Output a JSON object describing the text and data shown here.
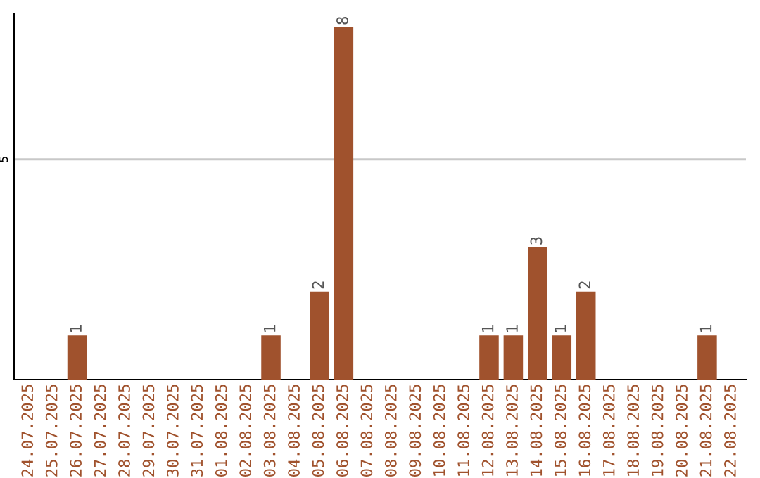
{
  "chart_data": {
    "type": "bar",
    "categories": [
      "24.07.2025",
      "25.07.2025",
      "26.07.2025",
      "27.07.2025",
      "28.07.2025",
      "29.07.2025",
      "30.07.2025",
      "31.07.2025",
      "01.08.2025",
      "02.08.2025",
      "03.08.2025",
      "04.08.2025",
      "05.08.2025",
      "06.08.2025",
      "07.08.2025",
      "08.08.2025",
      "09.08.2025",
      "10.08.2025",
      "11.08.2025",
      "12.08.2025",
      "13.08.2025",
      "14.08.2025",
      "15.08.2025",
      "16.08.2025",
      "17.08.2025",
      "18.08.2025",
      "19.08.2025",
      "20.08.2025",
      "21.08.2025",
      "22.08.2025"
    ],
    "values": [
      0,
      0,
      1,
      0,
      0,
      0,
      0,
      0,
      0,
      0,
      1,
      0,
      2,
      8,
      0,
      0,
      0,
      0,
      0,
      1,
      1,
      3,
      1,
      2,
      0,
      0,
      0,
      0,
      1,
      0
    ],
    "value_labels": [
      null,
      null,
      "1",
      null,
      null,
      null,
      null,
      null,
      null,
      null,
      "1",
      null,
      "2",
      "8",
      null,
      null,
      null,
      null,
      null,
      "1",
      "1",
      "3",
      "1",
      "2",
      null,
      null,
      null,
      null,
      "1",
      null
    ],
    "color": "#a0522d",
    "ylim": [
      0,
      8.3
    ],
    "yticks": [
      5
    ],
    "grid": "y"
  }
}
